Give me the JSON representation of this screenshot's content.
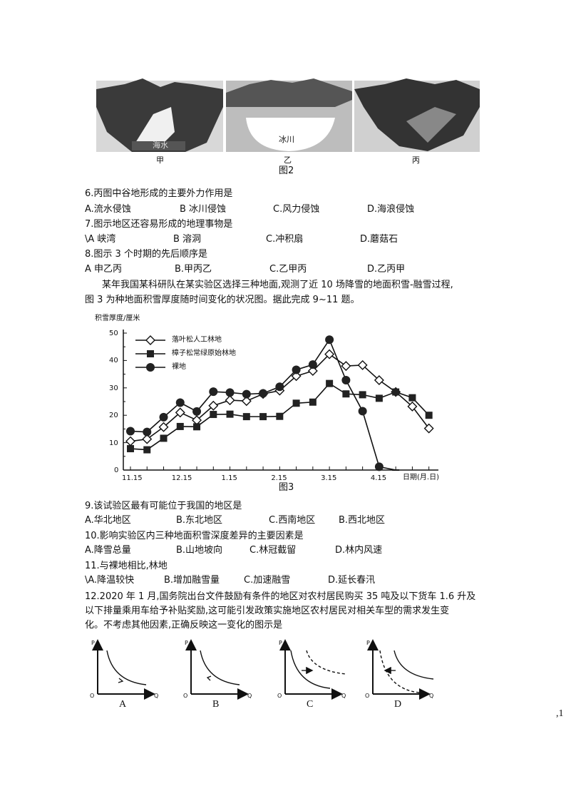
{
  "figure2": {
    "panels": [
      {
        "label": "甲",
        "inner_label": "海水"
      },
      {
        "label": "乙",
        "inner_label": "冰川"
      },
      {
        "label": "丙",
        "inner_label": ""
      }
    ],
    "caption": "图2"
  },
  "questions": [
    {
      "stem": "6.丙图中谷地形成的主要外力作用是",
      "options": [
        "A.流水侵蚀",
        "B 冰川侵蚀",
        "C.风力侵蚀",
        "D.海浪侵蚀"
      ]
    },
    {
      "stem": "7.图示地区还容易形成的地理事物是",
      "options": [
        "\\A 峡湾",
        "B 溶洞",
        "C.冲积扇",
        "D.蘑菇石"
      ]
    },
    {
      "stem": "8.图示 3 个时期的先后顺序是",
      "options": [
        "A 申乙丙",
        "B.甲丙乙",
        "C.乙甲丙",
        "D.乙丙甲"
      ]
    }
  ],
  "passage": [
    "某年我国某科研队在某实验区选择三种地面,观测了近 10 场降雪的地面积雪-融雪过程,",
    "图 3 为种地面积雪厚度随时间变化的状况图。据此完成 9~11 题。"
  ],
  "chart_data": {
    "type": "line",
    "title": "",
    "caption": "图3",
    "ylabel": "积雪厚度/厘米",
    "xlabel": "日期(月.日)",
    "ylim": [
      0,
      50
    ],
    "yticks": [
      "0",
      "10",
      "20",
      "30",
      "40",
      "50"
    ],
    "xtick_labels": [
      "11.15",
      "12.15",
      "1.15",
      "2.15",
      "3.15",
      "4.15"
    ],
    "x": [
      "11.15",
      "11.25",
      "12.5",
      "12.15",
      "12.25",
      "1.5",
      "1.15",
      "1.25",
      "2.5",
      "2.15",
      "2.25",
      "3.5",
      "3.15",
      "3.25",
      "4.5",
      "4.15",
      "4.25",
      "5.5",
      "5.15"
    ],
    "legend_position": "top-left",
    "series": [
      {
        "name": "落叶松人工林地",
        "marker": "diamond-open",
        "values": [
          10.5,
          11.3,
          15.7,
          21,
          18.2,
          23.5,
          25.5,
          25.2,
          27.8,
          29,
          34.3,
          36.2,
          42.3,
          38,
          38.3,
          32.8,
          28.5,
          23.2,
          15.2
        ]
      },
      {
        "name": "樟子松常绿原始林地",
        "marker": "square-filled",
        "values": [
          7.8,
          7.4,
          11.6,
          15.9,
          15.8,
          20.3,
          20.4,
          19.5,
          19.5,
          19.6,
          24.4,
          24.8,
          31.6,
          27.8,
          27.5,
          26.2,
          28.5,
          26.4,
          20
        ]
      },
      {
        "name": "裸地",
        "marker": "circle-filled",
        "values": [
          14.2,
          13.9,
          19.3,
          24.6,
          21.4,
          28.6,
          28.3,
          27.7,
          28,
          30.4,
          36.6,
          38.5,
          47.6,
          32.8,
          21.5,
          1.2,
          0,
          null,
          null
        ]
      }
    ]
  },
  "questions2": [
    {
      "stem": "9.该试验区最有可能位于我国的地区是",
      "options": [
        "A.华北地区",
        "B.东北地区",
        "C.西南地区",
        "B.西北地区"
      ]
    },
    {
      "stem": "10.影响实验区内三种地面积雪深度差异的主要因素是",
      "options": [
        "A.降雪总量",
        "B.山地坡向",
        "C.林冠截留",
        "D.林内风速"
      ]
    },
    {
      "stem": "11.与裸地相比,林地",
      "options": [
        "\\A.降温较快",
        "B.增加融雪量",
        "C.加速融雪",
        "D.延长春汛"
      ]
    }
  ],
  "q12": [
    "12.2020 年 1 月,国务院出台文件鼓励有条件的地区对农村居民购买 35 吨及以下货车 1.6 升及",
    "以下排量乘用车给予补贴奖励,这可能引发政策实施地区农村居民对相关车型的需求发生变",
    "化。不考虑其他因素,正确反映这一变化的图示是"
  ],
  "graphs": {
    "axis_p": "P",
    "axis_q": "Q",
    "origin": "O",
    "labels": [
      "A",
      "B",
      "C",
      "D"
    ]
  },
  "page_mark": ",1"
}
